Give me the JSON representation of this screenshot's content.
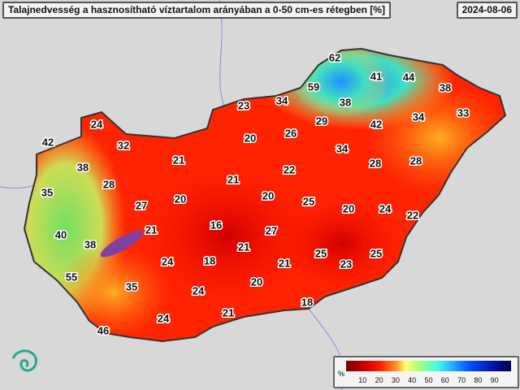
{
  "header": {
    "title": "Talajnedvesség a hasznosítható víztartalom arányában a 0-50 cm-es rétegben [%]",
    "date": "2024-08-06"
  },
  "legend": {
    "unit": "%",
    "ticks": [
      "10",
      "20",
      "30",
      "40",
      "50",
      "60",
      "70",
      "80",
      "90"
    ],
    "colors": [
      "#7a0000",
      "#ff1a00",
      "#ffff70",
      "#40ffe0",
      "#0050ff",
      "#000050"
    ]
  },
  "map_values": [
    "24",
    "42",
    "32",
    "38",
    "35",
    "28",
    "21",
    "27",
    "20",
    "21",
    "40",
    "38",
    "55",
    "35",
    "24",
    "18",
    "16",
    "21",
    "24",
    "21",
    "46",
    "24",
    "23",
    "34",
    "20",
    "26",
    "22",
    "21",
    "20",
    "27",
    "20",
    "21",
    "18",
    "29",
    "59",
    "62",
    "41",
    "44",
    "38",
    "38",
    "42",
    "34",
    "33",
    "34",
    "28",
    "28",
    "25",
    "20",
    "24",
    "22",
    "25",
    "23",
    "25"
  ]
}
